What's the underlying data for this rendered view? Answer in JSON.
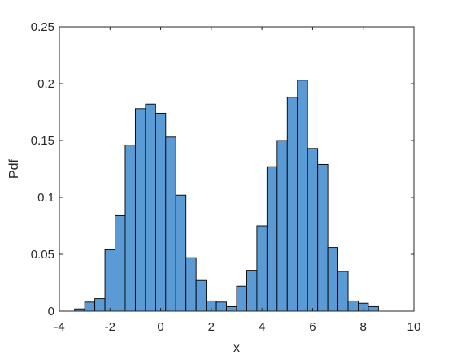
{
  "chart_data": {
    "type": "bar",
    "title": "",
    "xlabel": "x",
    "ylabel": "Pdf",
    "xlim": [
      -4,
      10
    ],
    "ylim": [
      0,
      0.25
    ],
    "xticks": [
      "-4",
      "-2",
      "0",
      "2",
      "4",
      "6",
      "8",
      "10"
    ],
    "yticks": [
      "0",
      "0.05",
      "0.1",
      "0.15",
      "0.2",
      "0.25"
    ],
    "grid": false,
    "bar_color": "#5B9BD5",
    "edge_color": "#000000",
    "bin_width": 0.4,
    "bins": [
      {
        "x0": -3.4,
        "y": 0.002
      },
      {
        "x0": -3.0,
        "y": 0.008
      },
      {
        "x0": -2.6,
        "y": 0.011
      },
      {
        "x0": -2.2,
        "y": 0.054
      },
      {
        "x0": -1.8,
        "y": 0.084
      },
      {
        "x0": -1.4,
        "y": 0.146
      },
      {
        "x0": -1.0,
        "y": 0.178
      },
      {
        "x0": -0.6,
        "y": 0.182
      },
      {
        "x0": -0.2,
        "y": 0.174
      },
      {
        "x0": 0.2,
        "y": 0.153
      },
      {
        "x0": 0.6,
        "y": 0.102
      },
      {
        "x0": 1.0,
        "y": 0.047
      },
      {
        "x0": 1.4,
        "y": 0.027
      },
      {
        "x0": 1.8,
        "y": 0.009
      },
      {
        "x0": 2.2,
        "y": 0.008
      },
      {
        "x0": 2.6,
        "y": 0.004
      },
      {
        "x0": 3.0,
        "y": 0.022
      },
      {
        "x0": 3.4,
        "y": 0.036
      },
      {
        "x0": 3.8,
        "y": 0.075
      },
      {
        "x0": 4.2,
        "y": 0.127
      },
      {
        "x0": 4.6,
        "y": 0.15
      },
      {
        "x0": 5.0,
        "y": 0.188
      },
      {
        "x0": 5.4,
        "y": 0.203
      },
      {
        "x0": 5.8,
        "y": 0.143
      },
      {
        "x0": 6.2,
        "y": 0.129
      },
      {
        "x0": 6.6,
        "y": 0.056
      },
      {
        "x0": 7.0,
        "y": 0.035
      },
      {
        "x0": 7.4,
        "y": 0.009
      },
      {
        "x0": 7.8,
        "y": 0.007
      },
      {
        "x0": 8.2,
        "y": 0.004
      }
    ]
  }
}
